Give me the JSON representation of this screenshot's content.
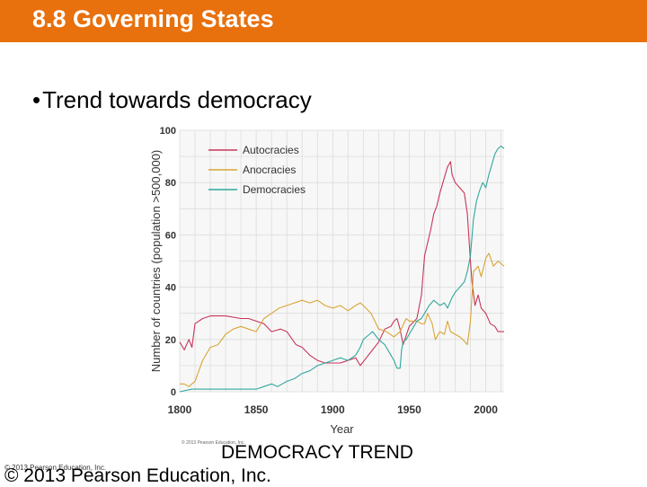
{
  "slide": {
    "title": "8.8 Governing States",
    "bullet": "Trend towards democracy",
    "caption": "DEMOCRACY TREND",
    "copyright": "© 2013 Pearson Education, Inc.",
    "copyright_small": "© 2013 Pearson Education, Inc.",
    "chart_credit": "© 2013 Pearson Education, Inc."
  },
  "colors": {
    "title_bar": "#e8700d",
    "autocracies": "#c8365a",
    "anocracies": "#d9a534",
    "democracies": "#2fa89c"
  },
  "chart_data": {
    "type": "line",
    "xlabel": "Year",
    "ylabel": "Number of countries (population >500,000)",
    "xlim": [
      1800,
      2012
    ],
    "ylim": [
      0,
      100
    ],
    "xticks": [
      "1800",
      "1850",
      "1900",
      "1950",
      "2000"
    ],
    "yticks": [
      "0",
      "20",
      "40",
      "60",
      "80",
      "100"
    ],
    "grid": true,
    "legend": "top-left",
    "series": [
      {
        "name": "Autocracies",
        "color": "#c8365a",
        "points": [
          [
            1800,
            19
          ],
          [
            1803,
            16
          ],
          [
            1806,
            20
          ],
          [
            1808,
            17
          ],
          [
            1810,
            26
          ],
          [
            1815,
            28
          ],
          [
            1820,
            29
          ],
          [
            1830,
            29
          ],
          [
            1840,
            28
          ],
          [
            1845,
            28
          ],
          [
            1850,
            27
          ],
          [
            1855,
            26
          ],
          [
            1860,
            23
          ],
          [
            1866,
            24
          ],
          [
            1870,
            23
          ],
          [
            1876,
            18
          ],
          [
            1880,
            17
          ],
          [
            1885,
            14
          ],
          [
            1890,
            12
          ],
          [
            1895,
            11
          ],
          [
            1900,
            11
          ],
          [
            1905,
            11
          ],
          [
            1910,
            12
          ],
          [
            1915,
            13
          ],
          [
            1918,
            10
          ],
          [
            1922,
            13
          ],
          [
            1926,
            16
          ],
          [
            1930,
            19
          ],
          [
            1934,
            24
          ],
          [
            1938,
            25
          ],
          [
            1940,
            27
          ],
          [
            1942,
            28
          ],
          [
            1944,
            24
          ],
          [
            1946,
            18
          ],
          [
            1950,
            25
          ],
          [
            1955,
            28
          ],
          [
            1958,
            37
          ],
          [
            1960,
            52
          ],
          [
            1962,
            57
          ],
          [
            1964,
            62
          ],
          [
            1966,
            68
          ],
          [
            1968,
            71
          ],
          [
            1970,
            76
          ],
          [
            1972,
            80
          ],
          [
            1975,
            86
          ],
          [
            1977,
            88
          ],
          [
            1978,
            83
          ],
          [
            1980,
            80
          ],
          [
            1983,
            78
          ],
          [
            1986,
            76
          ],
          [
            1988,
            68
          ],
          [
            1990,
            50
          ],
          [
            1991,
            42
          ],
          [
            1993,
            33
          ],
          [
            1995,
            37
          ],
          [
            1997,
            32
          ],
          [
            2000,
            30
          ],
          [
            2003,
            26
          ],
          [
            2006,
            25
          ],
          [
            2008,
            23
          ],
          [
            2012,
            23
          ]
        ]
      },
      {
        "name": "Anocracies",
        "color": "#d9a534",
        "points": [
          [
            1800,
            3
          ],
          [
            1803,
            3
          ],
          [
            1806,
            2
          ],
          [
            1810,
            4
          ],
          [
            1815,
            12
          ],
          [
            1820,
            17
          ],
          [
            1825,
            18
          ],
          [
            1830,
            22
          ],
          [
            1835,
            24
          ],
          [
            1840,
            25
          ],
          [
            1845,
            24
          ],
          [
            1850,
            23
          ],
          [
            1855,
            28
          ],
          [
            1860,
            30
          ],
          [
            1865,
            32
          ],
          [
            1870,
            33
          ],
          [
            1875,
            34
          ],
          [
            1880,
            35
          ],
          [
            1885,
            34
          ],
          [
            1890,
            35
          ],
          [
            1895,
            33
          ],
          [
            1900,
            32
          ],
          [
            1905,
            33
          ],
          [
            1910,
            31
          ],
          [
            1915,
            33
          ],
          [
            1918,
            34
          ],
          [
            1920,
            33
          ],
          [
            1925,
            30
          ],
          [
            1930,
            24
          ],
          [
            1935,
            23
          ],
          [
            1940,
            21
          ],
          [
            1944,
            23
          ],
          [
            1948,
            28
          ],
          [
            1950,
            27
          ],
          [
            1955,
            27
          ],
          [
            1958,
            26
          ],
          [
            1960,
            26
          ],
          [
            1962,
            30
          ],
          [
            1965,
            26
          ],
          [
            1967,
            20
          ],
          [
            1970,
            23
          ],
          [
            1973,
            22
          ],
          [
            1975,
            27
          ],
          [
            1977,
            23
          ],
          [
            1980,
            22
          ],
          [
            1983,
            21
          ],
          [
            1985,
            20
          ],
          [
            1988,
            18
          ],
          [
            1990,
            27
          ],
          [
            1992,
            46
          ],
          [
            1995,
            48
          ],
          [
            1997,
            44
          ],
          [
            2000,
            51
          ],
          [
            2002,
            53
          ],
          [
            2005,
            48
          ],
          [
            2008,
            50
          ],
          [
            2012,
            48
          ]
        ]
      },
      {
        "name": "Democracies",
        "color": "#2fa89c",
        "points": [
          [
            1800,
            0
          ],
          [
            1808,
            1
          ],
          [
            1815,
            1
          ],
          [
            1825,
            1
          ],
          [
            1835,
            1
          ],
          [
            1845,
            1
          ],
          [
            1850,
            1
          ],
          [
            1855,
            2
          ],
          [
            1860,
            3
          ],
          [
            1864,
            2
          ],
          [
            1870,
            4
          ],
          [
            1875,
            5
          ],
          [
            1880,
            7
          ],
          [
            1885,
            8
          ],
          [
            1890,
            10
          ],
          [
            1895,
            11
          ],
          [
            1900,
            12
          ],
          [
            1905,
            13
          ],
          [
            1910,
            12
          ],
          [
            1915,
            14
          ],
          [
            1918,
            17
          ],
          [
            1920,
            20
          ],
          [
            1924,
            22
          ],
          [
            1926,
            23
          ],
          [
            1930,
            20
          ],
          [
            1934,
            18
          ],
          [
            1938,
            14
          ],
          [
            1940,
            12
          ],
          [
            1942,
            9
          ],
          [
            1944,
            9
          ],
          [
            1945,
            16
          ],
          [
            1946,
            19
          ],
          [
            1948,
            20
          ],
          [
            1950,
            22
          ],
          [
            1953,
            25
          ],
          [
            1955,
            27
          ],
          [
            1958,
            28
          ],
          [
            1960,
            30
          ],
          [
            1963,
            33
          ],
          [
            1966,
            35
          ],
          [
            1970,
            33
          ],
          [
            1973,
            34
          ],
          [
            1975,
            32
          ],
          [
            1978,
            36
          ],
          [
            1980,
            38
          ],
          [
            1983,
            40
          ],
          [
            1986,
            42
          ],
          [
            1988,
            46
          ],
          [
            1990,
            52
          ],
          [
            1992,
            66
          ],
          [
            1994,
            73
          ],
          [
            1996,
            77
          ],
          [
            1998,
            80
          ],
          [
            2000,
            78
          ],
          [
            2002,
            83
          ],
          [
            2004,
            87
          ],
          [
            2006,
            91
          ],
          [
            2008,
            93
          ],
          [
            2010,
            94
          ],
          [
            2012,
            93
          ]
        ]
      }
    ]
  }
}
